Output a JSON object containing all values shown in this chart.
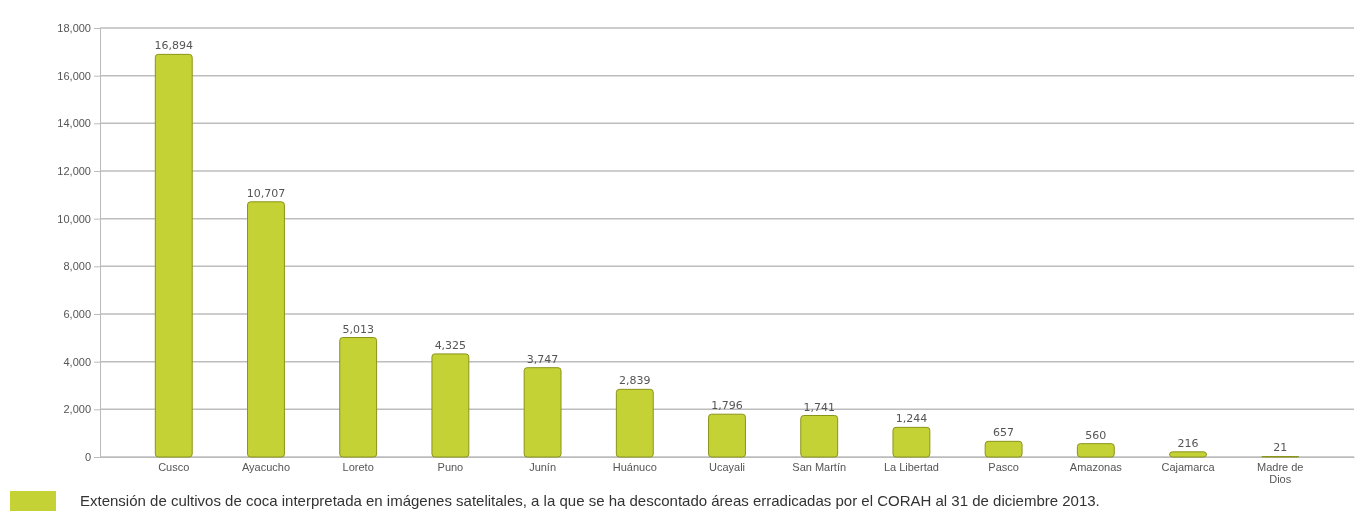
{
  "chart_data": {
    "type": "bar",
    "categories": [
      "Cusco",
      "Ayacucho",
      "Loreto",
      "Puno",
      "Junín",
      "Huánuco",
      "Ucayali",
      "San Martín",
      "La Libertad",
      "Pasco",
      "Amazonas",
      "Cajamarca",
      "Madre de Dios"
    ],
    "series": [
      {
        "name": "Extensión de cultivos de coca interpretada en imágenes satelitales, a la que se ha descontado áreas erradicadas por el CORAH al 31 de diciembre 2013.",
        "color": "#c5d236",
        "values": [
          16894,
          10707,
          5013,
          4325,
          3747,
          2839,
          1796,
          1741,
          1244,
          657,
          560,
          216,
          21
        ],
        "value_labels": [
          "16,894",
          "10,707",
          "5,013",
          "4,325",
          "3,747",
          "2,839",
          "1,796",
          "1,741",
          "1,244",
          "657",
          "560",
          "216",
          "21"
        ]
      }
    ],
    "ylim": [
      0,
      18000
    ],
    "yticks": [
      {
        "value": 0,
        "label": "0"
      },
      {
        "value": 2000,
        "label": "2,000"
      },
      {
        "value": 4000,
        "label": "4,000"
      },
      {
        "value": 6000,
        "label": "6,000"
      },
      {
        "value": 8000,
        "label": "8,000"
      },
      {
        "value": 10000,
        "label": "10,000"
      },
      {
        "value": 12000,
        "label": "12,000"
      },
      {
        "value": 14000,
        "label": "14,000"
      },
      {
        "value": 16000,
        "label": "16,000"
      },
      {
        "value": 18000,
        "label": "18,000"
      }
    ],
    "grid": "y",
    "legend": "bottom"
  }
}
